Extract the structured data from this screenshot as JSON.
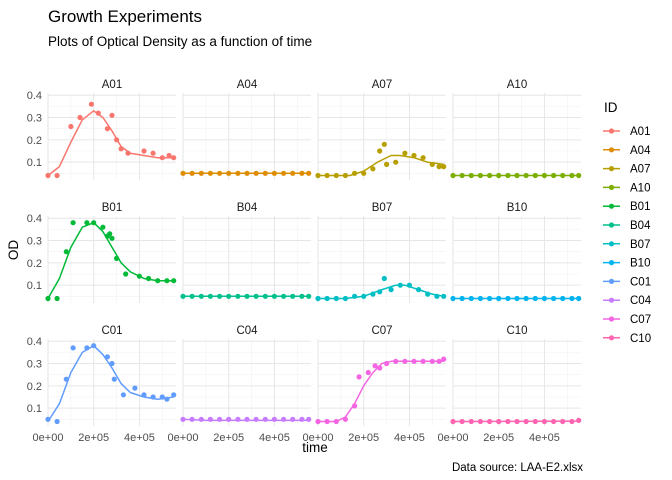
{
  "chart_data": {
    "type": "line",
    "facet_layout": "3 rows x 4 columns",
    "title": "Growth Experiments",
    "subtitle": "Plots of Optical Density as a function of time",
    "xlabel": "time",
    "ylabel": "OD",
    "caption": "Data source: LAA-E2.xlsx",
    "legend_title": "ID",
    "legend_placement": "right",
    "grid": true,
    "xlim": [
      0,
      560000
    ],
    "ylim": [
      0.02,
      0.41
    ],
    "x_ticks": [
      0,
      200000,
      400000
    ],
    "x_tick_labels": [
      "0e+00",
      "2e+05",
      "4e+05"
    ],
    "y_ticks": [
      0.1,
      0.2,
      0.3,
      0.4
    ],
    "y_tick_labels": [
      "0.1",
      "0.2",
      "0.3",
      "0.4"
    ],
    "legend": [
      {
        "id": "A01",
        "color": "#F8766D"
      },
      {
        "id": "A04",
        "color": "#DE8C00"
      },
      {
        "id": "A07",
        "color": "#B79F00"
      },
      {
        "id": "A10",
        "color": "#7CAE00"
      },
      {
        "id": "B01",
        "color": "#00BA38"
      },
      {
        "id": "B04",
        "color": "#00C08B"
      },
      {
        "id": "B07",
        "color": "#00BFC4"
      },
      {
        "id": "B10",
        "color": "#00B4F0"
      },
      {
        "id": "C01",
        "color": "#619CFF"
      },
      {
        "id": "C04",
        "color": "#C77CFF"
      },
      {
        "id": "C07",
        "color": "#F564E3"
      },
      {
        "id": "C10",
        "color": "#FF64B0"
      }
    ],
    "facets": [
      {
        "id": "A01",
        "color": "#F8766D",
        "points": [
          [
            0,
            0.04
          ],
          [
            40000,
            0.04
          ],
          [
            100000,
            0.26
          ],
          [
            140000,
            0.3
          ],
          [
            190000,
            0.36
          ],
          [
            220000,
            0.32
          ],
          [
            260000,
            0.25
          ],
          [
            280000,
            0.31
          ],
          [
            300000,
            0.2
          ],
          [
            320000,
            0.16
          ],
          [
            350000,
            0.14
          ],
          [
            420000,
            0.15
          ],
          [
            460000,
            0.14
          ],
          [
            500000,
            0.12
          ],
          [
            530000,
            0.13
          ],
          [
            550000,
            0.12
          ]
        ],
        "fit": [
          [
            0,
            0.04
          ],
          [
            50000,
            0.08
          ],
          [
            100000,
            0.19
          ],
          [
            150000,
            0.29
          ],
          [
            200000,
            0.33
          ],
          [
            240000,
            0.3
          ],
          [
            280000,
            0.24
          ],
          [
            320000,
            0.17
          ],
          [
            360000,
            0.14
          ],
          [
            420000,
            0.13
          ],
          [
            480000,
            0.12
          ],
          [
            550000,
            0.12
          ]
        ]
      },
      {
        "id": "A04",
        "color": "#DE8C00",
        "points": [
          [
            0,
            0.05
          ],
          [
            40000,
            0.05
          ],
          [
            80000,
            0.05
          ],
          [
            120000,
            0.05
          ],
          [
            160000,
            0.05
          ],
          [
            200000,
            0.05
          ],
          [
            240000,
            0.05
          ],
          [
            280000,
            0.05
          ],
          [
            320000,
            0.05
          ],
          [
            360000,
            0.05
          ],
          [
            400000,
            0.05
          ],
          [
            440000,
            0.05
          ],
          [
            480000,
            0.05
          ],
          [
            520000,
            0.05
          ],
          [
            550000,
            0.05
          ]
        ],
        "fit": [
          [
            0,
            0.05
          ],
          [
            550000,
            0.05
          ]
        ]
      },
      {
        "id": "A07",
        "color": "#B79F00",
        "points": [
          [
            0,
            0.04
          ],
          [
            40000,
            0.04
          ],
          [
            80000,
            0.04
          ],
          [
            120000,
            0.04
          ],
          [
            160000,
            0.05
          ],
          [
            200000,
            0.05
          ],
          [
            240000,
            0.07
          ],
          [
            270000,
            0.15
          ],
          [
            290000,
            0.18
          ],
          [
            300000,
            0.09
          ],
          [
            340000,
            0.1
          ],
          [
            380000,
            0.14
          ],
          [
            420000,
            0.13
          ],
          [
            460000,
            0.12
          ],
          [
            500000,
            0.09
          ],
          [
            530000,
            0.08
          ],
          [
            550000,
            0.08
          ]
        ],
        "fit": [
          [
            0,
            0.04
          ],
          [
            80000,
            0.04
          ],
          [
            140000,
            0.04
          ],
          [
            200000,
            0.06
          ],
          [
            260000,
            0.1
          ],
          [
            320000,
            0.13
          ],
          [
            360000,
            0.13
          ],
          [
            420000,
            0.12
          ],
          [
            480000,
            0.1
          ],
          [
            550000,
            0.09
          ]
        ]
      },
      {
        "id": "A10",
        "color": "#7CAE00",
        "points": [
          [
            0,
            0.04
          ],
          [
            40000,
            0.04
          ],
          [
            80000,
            0.04
          ],
          [
            120000,
            0.04
          ],
          [
            160000,
            0.04
          ],
          [
            200000,
            0.04
          ],
          [
            240000,
            0.04
          ],
          [
            280000,
            0.04
          ],
          [
            320000,
            0.04
          ],
          [
            360000,
            0.04
          ],
          [
            400000,
            0.04
          ],
          [
            440000,
            0.04
          ],
          [
            480000,
            0.04
          ],
          [
            520000,
            0.04
          ],
          [
            550000,
            0.04
          ]
        ],
        "fit": [
          [
            0,
            0.04
          ],
          [
            550000,
            0.04
          ]
        ]
      },
      {
        "id": "B01",
        "color": "#00BA38",
        "points": [
          [
            0,
            0.04
          ],
          [
            40000,
            0.04
          ],
          [
            80000,
            0.25
          ],
          [
            110000,
            0.38
          ],
          [
            170000,
            0.38
          ],
          [
            200000,
            0.38
          ],
          [
            240000,
            0.36
          ],
          [
            260000,
            0.32
          ],
          [
            270000,
            0.33
          ],
          [
            280000,
            0.31
          ],
          [
            300000,
            0.22
          ],
          [
            340000,
            0.15
          ],
          [
            400000,
            0.14
          ],
          [
            440000,
            0.13
          ],
          [
            480000,
            0.12
          ],
          [
            520000,
            0.12
          ],
          [
            550000,
            0.12
          ]
        ],
        "fit": [
          [
            0,
            0.04
          ],
          [
            50000,
            0.13
          ],
          [
            100000,
            0.27
          ],
          [
            150000,
            0.36
          ],
          [
            200000,
            0.38
          ],
          [
            240000,
            0.34
          ],
          [
            280000,
            0.27
          ],
          [
            320000,
            0.2
          ],
          [
            360000,
            0.16
          ],
          [
            420000,
            0.13
          ],
          [
            480000,
            0.12
          ],
          [
            550000,
            0.12
          ]
        ]
      },
      {
        "id": "B04",
        "color": "#00C08B",
        "points": [
          [
            0,
            0.05
          ],
          [
            40000,
            0.05
          ],
          [
            80000,
            0.05
          ],
          [
            120000,
            0.05
          ],
          [
            160000,
            0.05
          ],
          [
            200000,
            0.05
          ],
          [
            240000,
            0.05
          ],
          [
            280000,
            0.05
          ],
          [
            320000,
            0.05
          ],
          [
            360000,
            0.05
          ],
          [
            400000,
            0.05
          ],
          [
            440000,
            0.05
          ],
          [
            480000,
            0.05
          ],
          [
            520000,
            0.05
          ],
          [
            550000,
            0.05
          ]
        ],
        "fit": [
          [
            0,
            0.05
          ],
          [
            550000,
            0.05
          ]
        ]
      },
      {
        "id": "B07",
        "color": "#00BFC4",
        "points": [
          [
            0,
            0.04
          ],
          [
            40000,
            0.04
          ],
          [
            80000,
            0.04
          ],
          [
            120000,
            0.04
          ],
          [
            160000,
            0.05
          ],
          [
            200000,
            0.05
          ],
          [
            240000,
            0.06
          ],
          [
            270000,
            0.07
          ],
          [
            290000,
            0.13
          ],
          [
            320000,
            0.08
          ],
          [
            360000,
            0.1
          ],
          [
            400000,
            0.1
          ],
          [
            440000,
            0.08
          ],
          [
            480000,
            0.06
          ],
          [
            520000,
            0.05
          ],
          [
            550000,
            0.05
          ]
        ],
        "fit": [
          [
            0,
            0.04
          ],
          [
            120000,
            0.04
          ],
          [
            200000,
            0.05
          ],
          [
            280000,
            0.08
          ],
          [
            340000,
            0.1
          ],
          [
            380000,
            0.1
          ],
          [
            440000,
            0.08
          ],
          [
            500000,
            0.06
          ],
          [
            550000,
            0.05
          ]
        ]
      },
      {
        "id": "B10",
        "color": "#00B4F0",
        "points": [
          [
            0,
            0.04
          ],
          [
            40000,
            0.04
          ],
          [
            80000,
            0.04
          ],
          [
            120000,
            0.04
          ],
          [
            160000,
            0.04
          ],
          [
            200000,
            0.04
          ],
          [
            240000,
            0.04
          ],
          [
            280000,
            0.04
          ],
          [
            320000,
            0.04
          ],
          [
            360000,
            0.04
          ],
          [
            400000,
            0.04
          ],
          [
            440000,
            0.04
          ],
          [
            480000,
            0.04
          ],
          [
            520000,
            0.04
          ],
          [
            550000,
            0.04
          ]
        ],
        "fit": [
          [
            0,
            0.04
          ],
          [
            550000,
            0.04
          ]
        ]
      },
      {
        "id": "C01",
        "color": "#619CFF",
        "points": [
          [
            0,
            0.05
          ],
          [
            40000,
            0.04
          ],
          [
            80000,
            0.23
          ],
          [
            110000,
            0.37
          ],
          [
            170000,
            0.37
          ],
          [
            200000,
            0.38
          ],
          [
            260000,
            0.33
          ],
          [
            280000,
            0.3
          ],
          [
            290000,
            0.23
          ],
          [
            330000,
            0.16
          ],
          [
            380000,
            0.19
          ],
          [
            420000,
            0.16
          ],
          [
            460000,
            0.15
          ],
          [
            500000,
            0.15
          ],
          [
            520000,
            0.14
          ],
          [
            550000,
            0.16
          ]
        ],
        "fit": [
          [
            0,
            0.04
          ],
          [
            50000,
            0.12
          ],
          [
            100000,
            0.26
          ],
          [
            150000,
            0.35
          ],
          [
            200000,
            0.38
          ],
          [
            240000,
            0.34
          ],
          [
            280000,
            0.28
          ],
          [
            320000,
            0.21
          ],
          [
            360000,
            0.17
          ],
          [
            420000,
            0.15
          ],
          [
            480000,
            0.14
          ],
          [
            550000,
            0.15
          ]
        ]
      },
      {
        "id": "C04",
        "color": "#C77CFF",
        "points": [
          [
            0,
            0.05
          ],
          [
            40000,
            0.05
          ],
          [
            80000,
            0.05
          ],
          [
            120000,
            0.05
          ],
          [
            160000,
            0.05
          ],
          [
            200000,
            0.05
          ],
          [
            240000,
            0.05
          ],
          [
            280000,
            0.05
          ],
          [
            320000,
            0.05
          ],
          [
            360000,
            0.05
          ],
          [
            400000,
            0.05
          ],
          [
            440000,
            0.05
          ],
          [
            480000,
            0.05
          ],
          [
            520000,
            0.05
          ],
          [
            550000,
            0.05
          ]
        ],
        "fit": [
          [
            0,
            0.05
          ],
          [
            100000,
            0.045
          ],
          [
            200000,
            0.045
          ],
          [
            550000,
            0.045
          ]
        ]
      },
      {
        "id": "C07",
        "color": "#F564E3",
        "points": [
          [
            0,
            0.04
          ],
          [
            40000,
            0.04
          ],
          [
            80000,
            0.04
          ],
          [
            120000,
            0.05
          ],
          [
            160000,
            0.11
          ],
          [
            180000,
            0.24
          ],
          [
            220000,
            0.26
          ],
          [
            250000,
            0.29
          ],
          [
            270000,
            0.28
          ],
          [
            300000,
            0.3
          ],
          [
            340000,
            0.31
          ],
          [
            380000,
            0.31
          ],
          [
            420000,
            0.31
          ],
          [
            460000,
            0.31
          ],
          [
            500000,
            0.31
          ],
          [
            530000,
            0.31
          ],
          [
            550000,
            0.32
          ]
        ],
        "fit": [
          [
            0,
            0.04
          ],
          [
            80000,
            0.04
          ],
          [
            120000,
            0.06
          ],
          [
            160000,
            0.12
          ],
          [
            200000,
            0.2
          ],
          [
            240000,
            0.26
          ],
          [
            280000,
            0.3
          ],
          [
            320000,
            0.31
          ],
          [
            380000,
            0.31
          ],
          [
            450000,
            0.31
          ],
          [
            550000,
            0.31
          ]
        ]
      },
      {
        "id": "C10",
        "color": "#FF64B0",
        "points": [
          [
            0,
            0.04
          ],
          [
            40000,
            0.04
          ],
          [
            80000,
            0.04
          ],
          [
            120000,
            0.04
          ],
          [
            160000,
            0.04
          ],
          [
            200000,
            0.04
          ],
          [
            240000,
            0.04
          ],
          [
            280000,
            0.04
          ],
          [
            320000,
            0.04
          ],
          [
            360000,
            0.04
          ],
          [
            400000,
            0.04
          ],
          [
            440000,
            0.04
          ],
          [
            480000,
            0.04
          ],
          [
            520000,
            0.04
          ],
          [
            550000,
            0.045
          ]
        ],
        "fit": [
          [
            0,
            0.04
          ],
          [
            550000,
            0.042
          ]
        ]
      }
    ]
  }
}
